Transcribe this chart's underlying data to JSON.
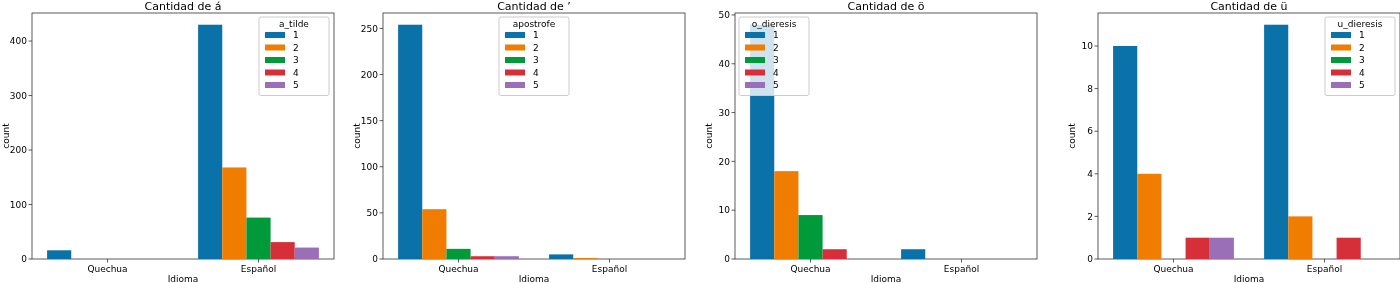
{
  "chart_data": [
    {
      "type": "bar",
      "title": "Cantidad de á",
      "xlabel": "Idioma",
      "ylabel": "count",
      "categories": [
        "Quechua",
        "Español"
      ],
      "legend": "top right",
      "legend_title": "a_tilde",
      "ylim": [
        0,
        451.5
      ],
      "yticks": [
        0,
        100,
        200,
        300,
        400
      ],
      "series": [
        {
          "name": "1",
          "color": "#0a72a8",
          "values": [
            16,
            430
          ]
        },
        {
          "name": "2",
          "color": "#f07c00",
          "values": [
            0,
            168
          ]
        },
        {
          "name": "3",
          "color": "#009a3a",
          "values": [
            0,
            76
          ]
        },
        {
          "name": "4",
          "color": "#d62f3a",
          "values": [
            0,
            31
          ]
        },
        {
          "name": "5",
          "color": "#9a6fb8",
          "values": [
            0,
            21
          ]
        }
      ]
    },
    {
      "type": "bar",
      "title": "Cantidad de ’",
      "xlabel": "Idioma",
      "ylabel": "count",
      "categories": [
        "Quechua",
        "Español"
      ],
      "legend": "top",
      "legend_title": "apostrofe",
      "ylim": [
        0,
        266.7
      ],
      "yticks": [
        0,
        50,
        100,
        150,
        200,
        250
      ],
      "series": [
        {
          "name": "1",
          "color": "#0a72a8",
          "values": [
            254,
            5
          ]
        },
        {
          "name": "2",
          "color": "#f07c00",
          "values": [
            54,
            1
          ]
        },
        {
          "name": "3",
          "color": "#009a3a",
          "values": [
            11,
            0
          ]
        },
        {
          "name": "4",
          "color": "#d62f3a",
          "values": [
            3,
            0
          ]
        },
        {
          "name": "5",
          "color": "#9a6fb8",
          "values": [
            3,
            0
          ]
        }
      ]
    },
    {
      "type": "bar",
      "title": "Cantidad de ö",
      "xlabel": "Idioma",
      "ylabel": "count",
      "categories": [
        "Quechua",
        "Español"
      ],
      "legend": "top left",
      "legend_title": "o_dieresis",
      "ylim": [
        0,
        50.4
      ],
      "yticks": [
        0,
        10,
        20,
        30,
        40,
        50
      ],
      "series": [
        {
          "name": "1",
          "color": "#0a72a8",
          "values": [
            48,
            2
          ]
        },
        {
          "name": "2",
          "color": "#f07c00",
          "values": [
            18,
            0
          ]
        },
        {
          "name": "3",
          "color": "#009a3a",
          "values": [
            9,
            0
          ]
        },
        {
          "name": "4",
          "color": "#d62f3a",
          "values": [
            2,
            0
          ]
        },
        {
          "name": "5",
          "color": "#9a6fb8",
          "values": [
            0,
            0
          ]
        }
      ]
    },
    {
      "type": "bar",
      "title": "Cantidad de ü",
      "xlabel": "Idioma",
      "ylabel": "count",
      "categories": [
        "Quechua",
        "Español"
      ],
      "legend": "top right",
      "legend_title": "u_dieresis",
      "ylim": [
        0,
        11.55
      ],
      "yticks": [
        0,
        2,
        4,
        6,
        8,
        10
      ],
      "series": [
        {
          "name": "1",
          "color": "#0a72a8",
          "values": [
            10,
            11
          ]
        },
        {
          "name": "2",
          "color": "#f07c00",
          "values": [
            4,
            2
          ]
        },
        {
          "name": "3",
          "color": "#009a3a",
          "values": [
            0,
            0
          ]
        },
        {
          "name": "4",
          "color": "#d62f3a",
          "values": [
            1,
            1
          ]
        },
        {
          "name": "5",
          "color": "#9a6fb8",
          "values": [
            1,
            0
          ]
        }
      ]
    }
  ]
}
